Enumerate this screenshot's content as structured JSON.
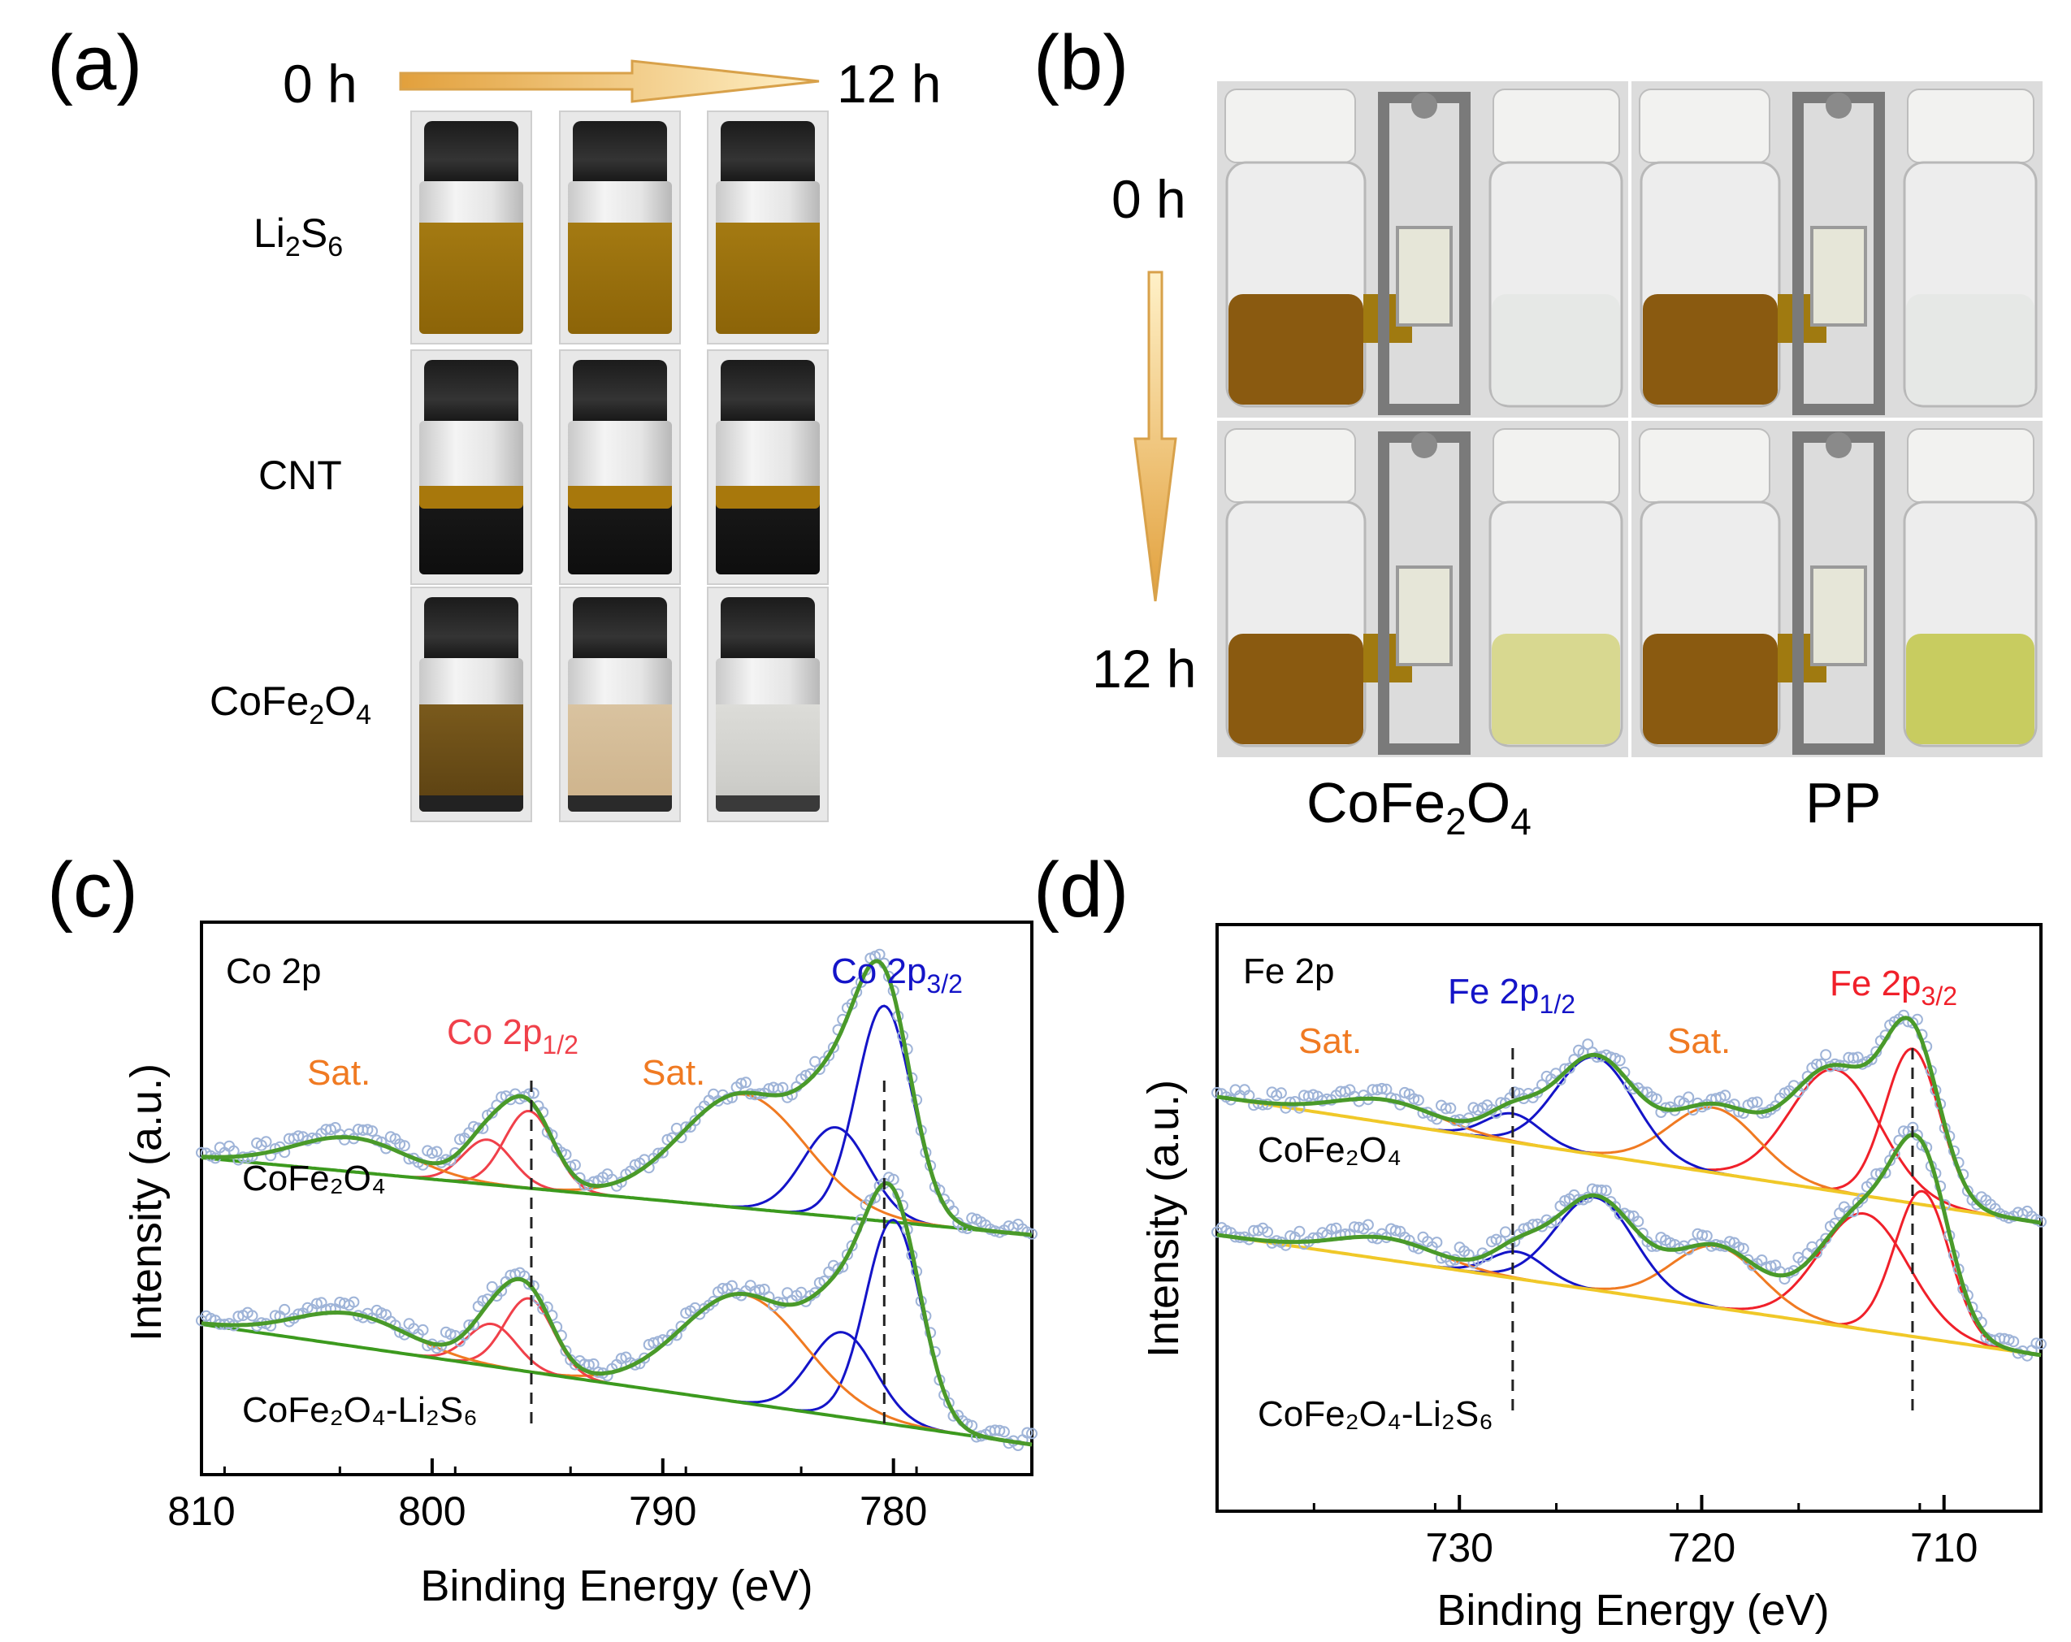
{
  "panel_a": {
    "label": "(a)",
    "time_start": "0 h",
    "time_end": "12 h",
    "rows": [
      {
        "name": "Li",
        "sub1": "2",
        "mid": "S",
        "sub2": "6",
        "tail": ""
      },
      {
        "name": "CNT",
        "sub1": "",
        "mid": "",
        "sub2": "",
        "tail": ""
      },
      {
        "name": "CoFe",
        "sub1": "2",
        "mid": "O",
        "sub2": "4",
        "tail": ""
      }
    ]
  },
  "panel_b": {
    "label": "(b)",
    "time_top": "0 h",
    "time_bottom": "12 h",
    "col1_main": "CoFe",
    "col1_sub1": "2",
    "col1_mid": "O",
    "col1_sub2": "4",
    "col2": "PP"
  },
  "panel_c": {
    "label": "(c)",
    "spectrum_title": "Co 2p",
    "ylabel": "Intensity (a.u.)",
    "xlabel": "Binding Energy (eV)",
    "sat1": "Sat.",
    "sat2": "Sat.",
    "peak_half": "Co 2p",
    "peak_half_sub": "1/2",
    "peak_three": "Co 2p",
    "peak_three_sub": "3/2",
    "trace_top": "CoFe₂O₄",
    "trace_bottom": "CoFe₂O₄-Li₂S₆"
  },
  "panel_d": {
    "label": "(d)",
    "spectrum_title": "Fe 2p",
    "ylabel": "Intensity (a.u.)",
    "xlabel": "Binding Energy (eV)",
    "sat1": "Sat.",
    "sat2": "Sat.",
    "peak_half": "Fe 2p",
    "peak_half_sub": "1/2",
    "peak_three": "Fe 2p",
    "peak_three_sub": "3/2",
    "trace_top": "CoFe₂O₄",
    "trace_bottom": "CoFe₂O₄-Li₂S₆"
  },
  "chart_data": [
    {
      "type": "line",
      "title": "Co 2p",
      "xlabel": "Binding Energy (eV)",
      "ylabel": "Intensity (a.u.)",
      "xlim": [
        810,
        774
      ],
      "x_ticks": [
        810,
        800,
        790,
        780
      ],
      "reference_lines_eV": [
        795.7,
        780.4
      ],
      "series": [
        {
          "name": "CoFe₂O₄",
          "peaks_eV": [
            780.4,
            782.5,
            786.5,
            795.8,
            797.6,
            803.5
          ]
        },
        {
          "name": "CoFe₂O₄-Li₂S₆",
          "peaks_eV": [
            780.0,
            782.2,
            786.5,
            795.8,
            797.4,
            803.5
          ]
        }
      ],
      "colors": {
        "data": "#9fb4d8",
        "envelope": "#4a9a2a",
        "co3_2": "#1414c8",
        "co1_2": "#f0404a",
        "sat": "#f07a22",
        "background": "#3c9a1e"
      }
    },
    {
      "type": "line",
      "title": "Fe 2p",
      "xlabel": "Binding Energy (eV)",
      "ylabel": "Intensity (a.u.)",
      "xlim": [
        740,
        706
      ],
      "x_ticks": [
        730,
        720,
        710
      ],
      "reference_lines_eV": [
        727.8,
        711.3
      ],
      "series": [
        {
          "name": "CoFe₂O₄",
          "peaks_eV": [
            711.3,
            714.5,
            719.5,
            724.4,
            727.8,
            733.0
          ]
        },
        {
          "name": "CoFe₂O₄-Li₂S₆",
          "peaks_eV": [
            710.9,
            713.3,
            719.4,
            724.4,
            727.6,
            733.0
          ]
        }
      ],
      "colors": {
        "data": "#9fb4d8",
        "envelope": "#4a9a2a",
        "fe3_2": "#f0202a",
        "fe1_2": "#1414c8",
        "sat": "#f07a22",
        "background": "#f0c828"
      }
    }
  ]
}
